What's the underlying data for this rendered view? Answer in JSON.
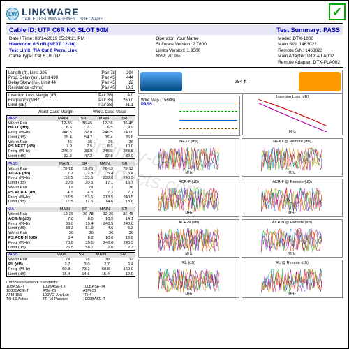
{
  "brand": "LINKWARE",
  "tagline": "CABLE TEST MANAGEMENT SOFTWARE",
  "logo": "LW",
  "cableId": "Cable ID: UTP C6R NO SLOT 90M",
  "testSummary": "Test Summary: PASS",
  "info": {
    "col1": {
      "date": "Date / Time: 08/14/2019  05:24:21 PM",
      "headroom": "Headroom 6.5 dB (NEXT 12-36)",
      "testlimit": "Test Limit: TIA Cat 6 Perm. Link",
      "cabletype": "Cable Type: Cat 6 U/UTP"
    },
    "col2": {
      "operator": "Operator: Your Name",
      "sw": "Software Version: 2.7800",
      "limits": "Limits Version: 1.9500",
      "nvp": "NVP: 70.9%"
    },
    "col3": {
      "model": "Model: DTX-1800",
      "mainsn": "Main S/N: 1463022",
      "remotesn": "Remote S/N: 1463023",
      "mainadp": "Main Adapter: DTX-PLA002",
      "remoteadp": "Remote Adapter: DTX-PLA002"
    }
  },
  "top": {
    "len": "294 ft",
    "lengths": [
      [
        "Length (ft), Limit 295",
        "[Pair 78]",
        "294"
      ],
      [
        "Prop. Delay (ns), Limit 498",
        "[Pair 45]",
        "444"
      ],
      [
        "Delay Skew (ns), Limit 44",
        "[Pair 45]",
        "22"
      ],
      [
        "Resistance (ohms)",
        "[Pair 45]",
        "13.1"
      ]
    ],
    "ilm": [
      [
        "Insertion Loss Margin (dB)",
        "[Pair 36]",
        "4.0"
      ],
      [
        "Frequency (MHz)",
        "[Pair 36]",
        "250.0"
      ],
      [
        "Limit (dB)",
        "[Pair 36]",
        "31.1"
      ]
    ]
  },
  "wiremap": {
    "title": "Wire Map (T568B)",
    "pass": "PASS"
  },
  "marginHdr": {
    "a": "Worst Case Margin",
    "b": "Worst Case Value"
  },
  "colhdrs": [
    "MAIN",
    "SR",
    "MAIN",
    "SR"
  ],
  "blocks": [
    {
      "status": "PASS",
      "rows": [
        [
          "Worst Pair",
          "12-36",
          "36-45",
          "12-36",
          "36-45"
        ],
        [
          "NEXT (dB)",
          "6.5",
          "7.1",
          "6.5",
          "9.9"
        ],
        [
          "Freq. (MHz)",
          "246.5",
          "32.8",
          "246.5",
          "240.0"
        ],
        [
          "Limit (dB)",
          "35.4",
          "54.7",
          "35.4",
          "35.6"
        ],
        [
          "Worst Pair",
          "36",
          "36",
          "36",
          "36"
        ],
        [
          "PS NEXT (dB)",
          "7.9",
          "7.5",
          "8.1",
          "10.0"
        ],
        [
          "Freq. (MHz)",
          "246.0",
          "33.0",
          "246.0",
          "243.5"
        ],
        [
          "Limit (dB)",
          "32.8",
          "47.2",
          "32.8",
          "32.9"
        ]
      ]
    },
    {
      "status": "PASS",
      "rows": [
        [
          "Worst Pair",
          "78-12",
          "12-78",
          "78-12",
          "78-12"
        ],
        [
          "ACR-F (dB)",
          "2.2",
          "2.8",
          "5.4",
          "5.4"
        ],
        [
          "Freq. (MHz)",
          "153.5",
          "153.5",
          "230.0",
          "240.5"
        ],
        [
          "Limit (dB)",
          "20.5",
          "20.5",
          "17.1",
          "16.7"
        ],
        [
          "Worst Pair",
          "12",
          "78",
          "12",
          "78"
        ],
        [
          "PS ACR-F (dB)",
          "4.1",
          "4.5",
          "7.2",
          "7.1"
        ],
        [
          "Freq. (MHz)",
          "153.5",
          "153.5",
          "213.5",
          "240.5"
        ],
        [
          "Limit (dB)",
          "17.5",
          "17.5",
          "14.6",
          "13.6"
        ]
      ]
    },
    {
      "status": "N/A",
      "rows": [
        [
          "Worst Pair",
          "12-36",
          "36-78",
          "12-36",
          "36-45"
        ],
        [
          "ACR-N (dB)",
          "7.8",
          "8.0",
          "10.5",
          "14.1"
        ],
        [
          "Freq. (MHz)",
          "36.0",
          "19.4",
          "246.5",
          "240.0"
        ],
        [
          "Limit (dB)",
          "38.3",
          "51.9",
          "4.6",
          "5.3"
        ],
        [
          "Worst Pair",
          "36",
          "36",
          "36",
          "36"
        ],
        [
          "PS ACR-N (dB)",
          "8.4",
          "8.2",
          "10.6",
          "13.9"
        ],
        [
          "Freq. (MHz)",
          "70.8",
          "35.5",
          "246.0",
          "243.5"
        ],
        [
          "Limit (dB)",
          "26.5",
          "58.7",
          "2.0",
          "2.3"
        ]
      ]
    },
    {
      "status": "PASS",
      "rows": [
        [
          "Worst Pair",
          "78",
          "78",
          "78",
          "12"
        ],
        [
          "RL (dB)",
          "2.7",
          "3.0",
          "2.7",
          "6.4"
        ],
        [
          "Freq. (MHz)",
          "60.8",
          "73.3",
          "60.8",
          "160.0"
        ],
        [
          "Limit (dB)",
          "15.4",
          "14.6",
          "15.4",
          "12.0"
        ]
      ]
    }
  ],
  "graphs": [
    "Insertion Loss (dB)",
    "NEXT (dB)",
    "NEXT @ Remote (dB)",
    "ACR-F (dB)",
    "ACR-F @ Remote (dB)",
    "ACR-N (dB)",
    "ACR-N @ Remote (dB)",
    "RL (dB)",
    "RL @ Remote (dB)"
  ],
  "xaxis": "MHz",
  "standards": {
    "title": "Compliant Network Standards:",
    "c1": [
      "10BASE-T",
      "1000BASE-T",
      "ATM-155",
      "TR-16 Active"
    ],
    "c2": [
      "100BASE-TX",
      "ATM-25",
      "100VG-AnyLan",
      "TR-16 Passive"
    ],
    "c3": [
      "100BASE-T4",
      "ATM-51",
      "TR-4",
      "1000BASE-T"
    ]
  },
  "colors": {
    "wires": [
      "#e90",
      "#0a0",
      "#06c",
      "#850"
    ]
  }
}
